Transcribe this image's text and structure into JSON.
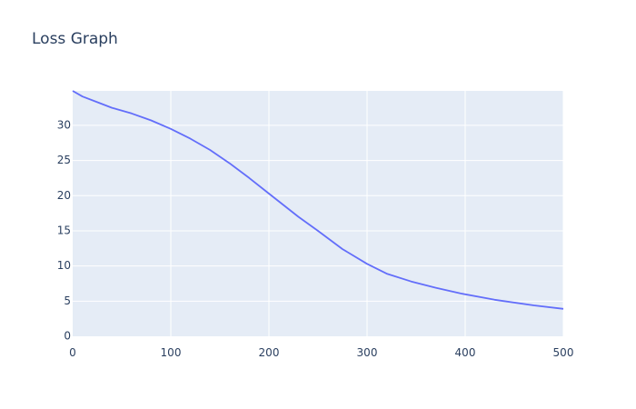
{
  "chart_data": {
    "type": "line",
    "title": "Loss Graph",
    "xlabel": "",
    "ylabel": "",
    "xlim": [
      0,
      500
    ],
    "ylim": [
      0,
      34.9
    ],
    "grid": true,
    "x_ticks": [
      0,
      100,
      200,
      300,
      400,
      500
    ],
    "y_ticks": [
      0,
      5,
      10,
      15,
      20,
      25,
      30
    ],
    "colors": {
      "line": "#636efa",
      "plot_bg": "#e5ecf6",
      "grid": "#ffffff",
      "text": "#2a3f5f"
    },
    "series": [
      {
        "x": [
          0,
          10,
          25,
          40,
          60,
          80,
          100,
          120,
          140,
          160,
          180,
          200,
          230,
          250,
          275,
          300,
          320,
          345,
          370,
          395,
          430,
          470,
          500
        ],
        "y": [
          34.9,
          34.1,
          33.3,
          32.5,
          31.7,
          30.7,
          29.5,
          28.1,
          26.5,
          24.6,
          22.5,
          20.3,
          17.0,
          15.0,
          12.4,
          10.3,
          8.9,
          7.8,
          6.9,
          6.1,
          5.2,
          4.4,
          3.9
        ]
      }
    ]
  }
}
